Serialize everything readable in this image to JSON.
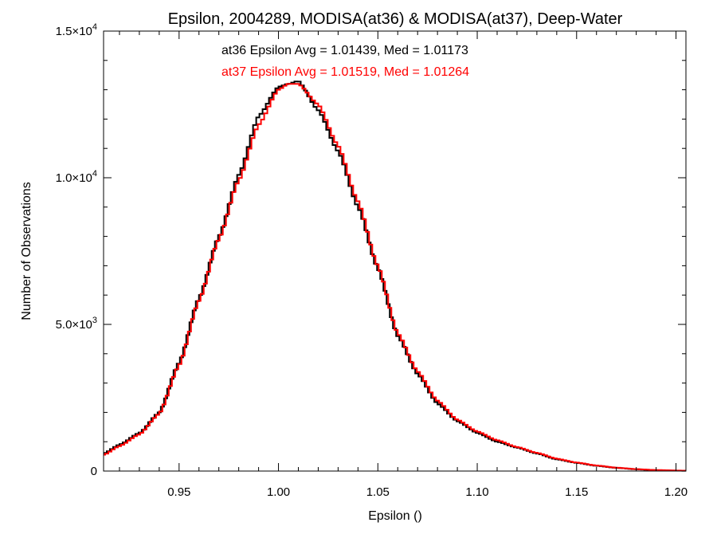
{
  "colors": {
    "series_at36": "#000000",
    "series_at37": "#ff0000",
    "axis": "#000000",
    "background": "#ffffff"
  },
  "chart_data": {
    "type": "line",
    "style": "step-histogram",
    "title": "Epsilon, 2004289, MODISA(at36) & MODISA(at37), Deep-Water",
    "xlabel": "Epsilon ()",
    "ylabel": "Number of Observations",
    "xlim": [
      0.912,
      1.205
    ],
    "ylim": [
      0,
      15000
    ],
    "x_ticks": [
      {
        "value": 0.95,
        "label": "0.95"
      },
      {
        "value": 1.0,
        "label": "1.00"
      },
      {
        "value": 1.05,
        "label": "1.05"
      },
      {
        "value": 1.1,
        "label": "1.10"
      },
      {
        "value": 1.15,
        "label": "1.15"
      },
      {
        "value": 1.2,
        "label": "1.20"
      }
    ],
    "y_ticks": [
      {
        "value": 0,
        "mantissa": "0",
        "exponent": ""
      },
      {
        "value": 5000,
        "mantissa": "5.0×10",
        "exponent": "3"
      },
      {
        "value": 10000,
        "mantissa": "1.0×10",
        "exponent": "4"
      },
      {
        "value": 15000,
        "mantissa": "1.5×10",
        "exponent": "4"
      }
    ],
    "grid": false,
    "annotations": [
      {
        "text": "at36 Epsilon Avg = 1.01439, Med = 1.01173",
        "color": "#000000"
      },
      {
        "text": "at37 Epsilon Avg = 1.01519, Med = 1.01264",
        "color": "#ff0000"
      }
    ],
    "series": [
      {
        "key": "at36",
        "color": "#000000",
        "x": [
          0.912,
          0.92,
          0.93,
          0.94,
          0.95,
          0.96,
          0.97,
          0.98,
          0.99,
          1.0,
          1.005,
          1.01,
          1.02,
          1.03,
          1.04,
          1.05,
          1.06,
          1.07,
          1.08,
          1.09,
          1.1,
          1.11,
          1.12,
          1.13,
          1.14,
          1.15,
          1.16,
          1.17,
          1.18,
          1.19,
          1.2,
          1.205
        ],
        "values": [
          600,
          900,
          1300,
          2000,
          3700,
          5900,
          8000,
          10100,
          12100,
          13100,
          13200,
          13300,
          12300,
          10900,
          9000,
          6900,
          4600,
          3300,
          2300,
          1700,
          1300,
          1000,
          800,
          600,
          400,
          280,
          180,
          110,
          60,
          30,
          15,
          10
        ]
      },
      {
        "key": "at37",
        "color": "#ff0000",
        "x": [
          0.912,
          0.92,
          0.93,
          0.94,
          0.95,
          0.96,
          0.97,
          0.98,
          0.99,
          1.0,
          1.005,
          1.01,
          1.02,
          1.03,
          1.04,
          1.05,
          1.06,
          1.07,
          1.08,
          1.09,
          1.1,
          1.11,
          1.12,
          1.13,
          1.14,
          1.15,
          1.16,
          1.17,
          1.18,
          1.19,
          1.2,
          1.205
        ],
        "values": [
          550,
          850,
          1250,
          1950,
          3600,
          5800,
          7900,
          9900,
          11800,
          13000,
          13200,
          13200,
          12500,
          11100,
          9200,
          7000,
          4700,
          3400,
          2400,
          1750,
          1350,
          1050,
          820,
          620,
          420,
          290,
          190,
          115,
          65,
          35,
          18,
          12
        ]
      }
    ]
  }
}
